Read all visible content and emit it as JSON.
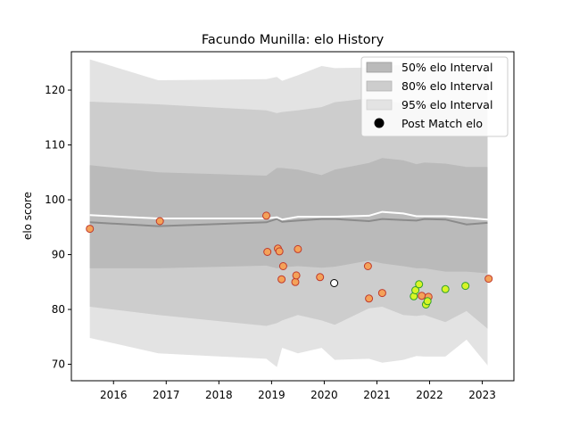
{
  "chart_data": {
    "type": "line",
    "title": "Facundo Munilla: elo History",
    "xlabel": "",
    "ylabel": "elo score",
    "xlim": [
      2015.2,
      2023.6
    ],
    "ylim": [
      67,
      127
    ],
    "xticks": [
      2016,
      2017,
      2018,
      2019,
      2020,
      2021,
      2022,
      2023
    ],
    "yticks": [
      70,
      80,
      90,
      100,
      110,
      120
    ],
    "grid": false,
    "legend_position": "top-right",
    "legend": {
      "band50_label": "50% elo Interval",
      "band80_label": "80% elo Interval",
      "band95_label": "95% elo Interval",
      "points_label": "Post Match elo"
    },
    "band_x": [
      2015.55,
      2016.85,
      2018.9,
      2019.1,
      2019.2,
      2019.5,
      2019.95,
      2020.2,
      2020.85,
      2021.1,
      2021.5,
      2021.75,
      2021.9,
      2022.3,
      2022.7,
      2023.1
    ],
    "band95_upper": [
      125.6,
      121.8,
      122.0,
      122.4,
      121.7,
      122.7,
      124.4,
      124.0,
      124.1,
      124.6,
      124.5,
      123.9,
      124.0,
      124.2,
      123.3,
      123.1
    ],
    "band95_lower": [
      74.8,
      72.0,
      71.0,
      69.5,
      73.0,
      72.0,
      73.0,
      70.8,
      71.0,
      70.3,
      70.8,
      71.5,
      71.4,
      71.4,
      74.5,
      69.8
    ],
    "band80_upper": [
      117.9,
      117.4,
      116.3,
      115.8,
      116.0,
      116.3,
      116.9,
      117.8,
      118.5,
      118.1,
      117.6,
      117.0,
      117.5,
      117.8,
      117.2,
      117.2
    ],
    "band80_lower": [
      80.5,
      79.0,
      77.0,
      77.5,
      78.0,
      79.0,
      78.0,
      77.2,
      80.2,
      80.5,
      79.0,
      78.8,
      79.0,
      77.7,
      79.7,
      76.5
    ],
    "band50_upper": [
      106.3,
      105.0,
      104.4,
      105.8,
      105.8,
      105.5,
      104.5,
      105.5,
      106.7,
      107.6,
      107.2,
      106.5,
      106.8,
      106.6,
      106.0,
      106.0
    ],
    "band50_lower": [
      87.5,
      87.5,
      88.0,
      87.5,
      87.7,
      87.9,
      87.6,
      87.8,
      88.9,
      88.4,
      87.9,
      87.5,
      87.5,
      86.9,
      86.9,
      86.6
    ],
    "median_line": [
      95.9,
      95.2,
      95.9,
      96.5,
      96.0,
      96.2,
      96.5,
      96.5,
      96.1,
      96.5,
      96.3,
      96.2,
      96.5,
      96.4,
      95.5,
      95.8
    ],
    "mean_line": [
      97.2,
      96.6,
      96.6,
      96.8,
      96.4,
      96.9,
      96.9,
      96.9,
      97.1,
      97.8,
      97.5,
      97.0,
      97.0,
      97.0,
      96.7,
      96.4
    ],
    "points_orange": [
      {
        "x": 2015.55,
        "y": 94.7
      },
      {
        "x": 2016.88,
        "y": 96.1
      },
      {
        "x": 2018.9,
        "y": 97.1
      },
      {
        "x": 2018.92,
        "y": 90.5
      },
      {
        "x": 2019.12,
        "y": 91.1
      },
      {
        "x": 2019.15,
        "y": 90.6
      },
      {
        "x": 2019.19,
        "y": 85.5
      },
      {
        "x": 2019.22,
        "y": 87.9
      },
      {
        "x": 2019.45,
        "y": 85.0
      },
      {
        "x": 2019.47,
        "y": 86.2
      },
      {
        "x": 2019.5,
        "y": 91.0
      },
      {
        "x": 2019.92,
        "y": 85.9
      },
      {
        "x": 2020.83,
        "y": 87.9
      },
      {
        "x": 2020.85,
        "y": 82.0
      },
      {
        "x": 2021.1,
        "y": 83.0
      },
      {
        "x": 2021.85,
        "y": 82.5
      },
      {
        "x": 2021.98,
        "y": 82.3
      },
      {
        "x": 2023.12,
        "y": 85.6
      }
    ],
    "point_white": {
      "x": 2020.19,
      "y": 84.8
    },
    "points_yellow": [
      {
        "x": 2021.7,
        "y": 82.4
      },
      {
        "x": 2021.73,
        "y": 83.5
      },
      {
        "x": 2021.8,
        "y": 84.6
      },
      {
        "x": 2021.93,
        "y": 80.9
      },
      {
        "x": 2021.96,
        "y": 81.5
      },
      {
        "x": 2022.3,
        "y": 83.7
      },
      {
        "x": 2022.68,
        "y": 84.3
      }
    ],
    "colors": {
      "band95": "#e3e3e3",
      "band80": "#cdcdcd",
      "band50": "#bababa",
      "median": "#8b8b8b",
      "mean": "#ffffff",
      "point_orange": "#f4a259",
      "point_orange_edge": "#c0392b",
      "point_yellow": "#d8f526",
      "point_yellow_edge": "#33a02c",
      "point_white": "#ffffff"
    }
  }
}
